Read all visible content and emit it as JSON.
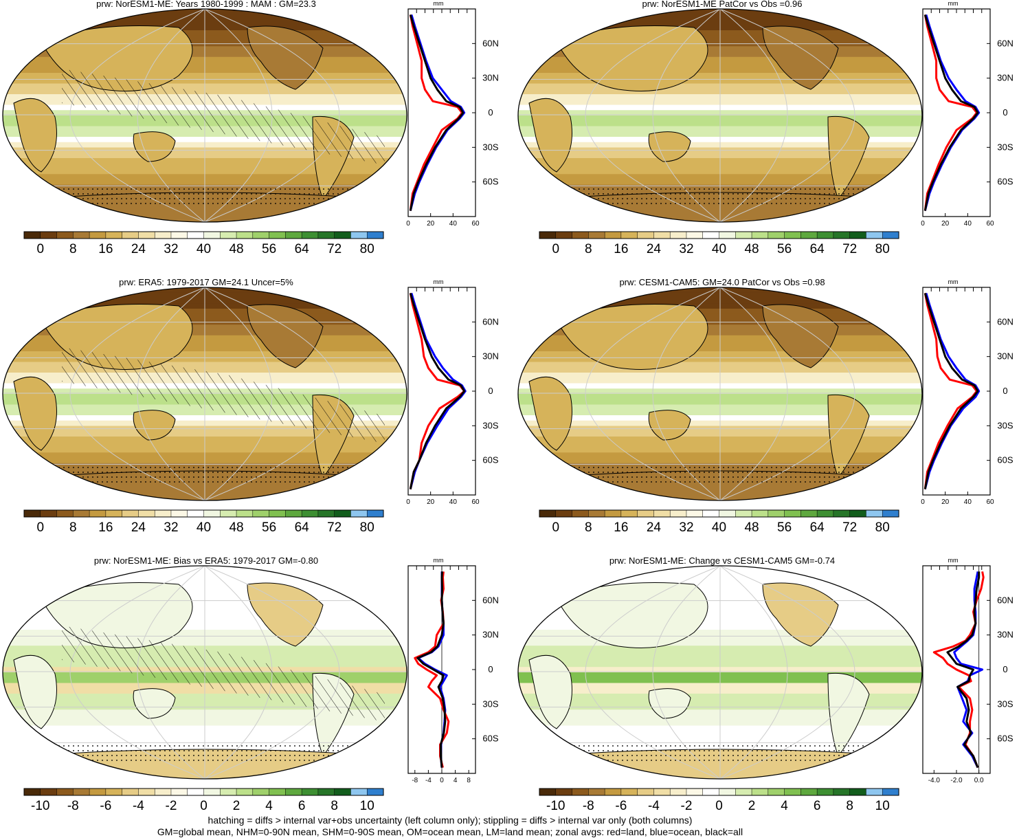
{
  "colors": {
    "abs_scale": [
      "#4a2a09",
      "#6b3d10",
      "#8c5a1d",
      "#a87a35",
      "#c49a40",
      "#d6b35a",
      "#e6cc86",
      "#f0dea6",
      "#f7eecb",
      "#fcf8e6",
      "#ffffff",
      "#f1f7e2",
      "#d6ecb0",
      "#bce08a",
      "#9fd06b",
      "#80c050",
      "#5ea83e",
      "#3d8f32",
      "#267528",
      "#125d1c",
      "#8ec6ef",
      "#2f7fce"
    ],
    "diff_scale": [
      "#4a2a09",
      "#6b3d10",
      "#8c5a1d",
      "#a87a35",
      "#c49a40",
      "#d6b35a",
      "#e6cc86",
      "#f0dea6",
      "#f7eecb",
      "#fcf8e6",
      "#ffffff",
      "#f1f7e2",
      "#d6ecb0",
      "#bce08a",
      "#9fd06b",
      "#80c050",
      "#5ea83e",
      "#3d8f32",
      "#267528",
      "#125d1c",
      "#8ec6ef",
      "#2f7fce"
    ],
    "land": "#ff0000",
    "ocean": "#0000ff",
    "all": "#000000"
  },
  "abs_colorbar_labels": [
    "0",
    "8",
    "16",
    "24",
    "32",
    "40",
    "48",
    "56",
    "64",
    "72",
    "80"
  ],
  "diff_colorbar_labels": [
    "-10",
    "-8",
    "-6",
    "-4",
    "-2",
    "0",
    "2",
    "4",
    "6",
    "8",
    "10"
  ],
  "lat_labels": [
    "60N",
    "30N",
    "0",
    "30S",
    "60S"
  ],
  "zonal_unit": "mm",
  "panels": [
    {
      "title": "prw: NorESM1-ME: Years 1980-1999 : MAM : GM=23.3",
      "type": "abs"
    },
    {
      "title": "prw: NorESM1-ME PatCor vs Obs =0.96",
      "type": "abs"
    },
    {
      "title": "prw: ERA5: 1979-2017 GM=24.1 Uncer=5%",
      "type": "abs"
    },
    {
      "title": "prw: CESM1-CAM5: GM=24.0 PatCor vs Obs =0.98",
      "type": "abs"
    },
    {
      "title": "prw: NorESM1-ME: Bias vs ERA5: 1979-2017 GM=-0.80",
      "type": "diff"
    },
    {
      "title": "prw: NorESM1-ME: Change vs CESM1-CAM5 GM=-0.74",
      "type": "diff"
    }
  ],
  "chart_data": [
    {
      "type": "line",
      "panel": 1,
      "xlabel": "mm",
      "xlim": [
        0,
        60
      ],
      "xticks": [
        "0",
        "20",
        "40",
        "60"
      ],
      "ylim": [
        -90,
        90
      ],
      "y_ticklabels": [
        "60N",
        "30N",
        "0",
        "30S",
        "60S"
      ],
      "lat": [
        -85,
        -70,
        -60,
        -45,
        -30,
        -15,
        -5,
        0,
        5,
        10,
        20,
        30,
        45,
        60,
        75,
        85
      ],
      "series": [
        {
          "name": "land",
          "values": [
            2,
            4,
            8,
            14,
            22,
            30,
            44,
            48,
            44,
            22,
            15,
            12,
            12,
            8,
            4,
            2
          ]
        },
        {
          "name": "ocean",
          "values": [
            2,
            6,
            10,
            17,
            25,
            35,
            46,
            50,
            47,
            38,
            30,
            22,
            16,
            11,
            6,
            3
          ]
        },
        {
          "name": "all",
          "values": [
            2,
            5,
            9,
            16,
            24,
            34,
            45,
            49,
            46,
            34,
            26,
            20,
            15,
            10,
            5,
            2
          ]
        }
      ]
    },
    {
      "type": "line",
      "panel": 2,
      "xlabel": "mm",
      "xlim": [
        0,
        60
      ],
      "xticks": [
        "0",
        "20",
        "40",
        "60"
      ],
      "ylim": [
        -90,
        90
      ],
      "y_ticklabels": [
        "60N",
        "30N",
        "0",
        "30S",
        "60S"
      ],
      "lat": [
        -85,
        -70,
        -60,
        -45,
        -30,
        -15,
        -5,
        0,
        5,
        10,
        20,
        30,
        45,
        60,
        75,
        85
      ],
      "series": [
        {
          "name": "land",
          "values": [
            2,
            4,
            8,
            14,
            21,
            30,
            44,
            48,
            44,
            23,
            15,
            12,
            12,
            8,
            4,
            2
          ]
        },
        {
          "name": "ocean",
          "values": [
            2,
            6,
            10,
            17,
            25,
            35,
            46,
            50,
            47,
            38,
            30,
            23,
            16,
            11,
            6,
            3
          ]
        },
        {
          "name": "all",
          "values": [
            2,
            5,
            9,
            16,
            24,
            34,
            45,
            49,
            46,
            34,
            26,
            20,
            15,
            10,
            5,
            2
          ]
        }
      ]
    },
    {
      "type": "line",
      "panel": 3,
      "xlabel": "mm",
      "xlim": [
        0,
        60
      ],
      "xticks": [
        "0",
        "20",
        "40",
        "60"
      ],
      "ylim": [
        -90,
        90
      ],
      "y_ticklabels": [
        "60N",
        "30N",
        "0",
        "30S",
        "60S"
      ],
      "lat": [
        -85,
        -70,
        -60,
        -45,
        -30,
        -15,
        -5,
        0,
        5,
        10,
        20,
        30,
        45,
        60,
        75,
        85
      ],
      "series": [
        {
          "name": "land",
          "values": [
            2,
            5,
            10,
            12,
            18,
            28,
            44,
            50,
            46,
            26,
            18,
            14,
            12,
            8,
            4,
            2
          ]
        },
        {
          "name": "ocean",
          "values": [
            2,
            6,
            10,
            17,
            26,
            36,
            47,
            51,
            48,
            40,
            31,
            24,
            16,
            11,
            6,
            3
          ]
        },
        {
          "name": "all",
          "values": [
            2,
            5,
            10,
            16,
            24,
            34,
            46,
            50,
            47,
            36,
            27,
            21,
            15,
            10,
            5,
            2
          ]
        }
      ]
    },
    {
      "type": "line",
      "panel": 4,
      "xlabel": "mm",
      "xlim": [
        0,
        60
      ],
      "xticks": [
        "0",
        "20",
        "40",
        "60"
      ],
      "ylim": [
        -90,
        90
      ],
      "y_ticklabels": [
        "60N",
        "30N",
        "0",
        "30S",
        "60S"
      ],
      "lat": [
        -85,
        -70,
        -60,
        -45,
        -30,
        -15,
        -5,
        0,
        5,
        10,
        20,
        30,
        45,
        60,
        75,
        85
      ],
      "series": [
        {
          "name": "land",
          "values": [
            2,
            4,
            8,
            14,
            22,
            31,
            44,
            48,
            44,
            24,
            16,
            13,
            12,
            8,
            4,
            2
          ]
        },
        {
          "name": "ocean",
          "values": [
            2,
            6,
            10,
            17,
            25,
            36,
            47,
            50,
            47,
            38,
            30,
            23,
            16,
            11,
            6,
            3
          ]
        },
        {
          "name": "all",
          "values": [
            2,
            5,
            9,
            16,
            24,
            34,
            45,
            49,
            46,
            35,
            26,
            20,
            15,
            10,
            5,
            2
          ]
        }
      ]
    },
    {
      "type": "line",
      "panel": 5,
      "xlabel": "mm",
      "xlim": [
        -10,
        10
      ],
      "xticks": [
        "-8",
        "-4",
        "0",
        "4",
        "8"
      ],
      "ylim": [
        -90,
        90
      ],
      "y_ticklabels": [
        "60N",
        "30N",
        "0",
        "30S",
        "60S"
      ],
      "lat": [
        -85,
        -75,
        -65,
        -55,
        -45,
        -35,
        -25,
        -15,
        -10,
        -5,
        0,
        5,
        10,
        15,
        20,
        30,
        40,
        50,
        60,
        70,
        80,
        85
      ],
      "series": [
        {
          "name": "land",
          "values": [
            0.3,
            -0.5,
            -0.5,
            1.5,
            2.0,
            0.5,
            -0.5,
            -4.0,
            -3.0,
            -1.5,
            -4.5,
            -7.0,
            -8.0,
            -4.0,
            -2.0,
            -1.5,
            0.5,
            0.3,
            -0.2,
            0.5,
            0.3,
            0.5
          ]
        },
        {
          "name": "ocean",
          "values": [
            0.0,
            -0.3,
            -0.2,
            0.5,
            0.8,
            1.0,
            0.5,
            -0.5,
            0.5,
            1.5,
            -2.0,
            -5.0,
            -7.0,
            -3.0,
            -1.0,
            0.5,
            0.5,
            0.2,
            0.0,
            0.0,
            0.0,
            0.0
          ]
        },
        {
          "name": "all",
          "values": [
            0.0,
            -0.3,
            -0.3,
            0.6,
            1.0,
            0.8,
            0.3,
            -1.0,
            0.0,
            0.5,
            -2.5,
            -5.5,
            -7.2,
            -3.2,
            -1.3,
            0.0,
            0.5,
            0.2,
            0.0,
            0.1,
            0.0,
            0.1
          ]
        }
      ]
    },
    {
      "type": "line",
      "panel": 6,
      "xlabel": "mm",
      "xlim": [
        -5,
        1
      ],
      "xticks": [
        "-4.0",
        "-2.0",
        "0.0"
      ],
      "ylim": [
        -90,
        90
      ],
      "y_ticklabels": [
        "60N",
        "30N",
        "0",
        "30S",
        "60S"
      ],
      "lat": [
        -85,
        -75,
        -65,
        -55,
        -45,
        -35,
        -25,
        -15,
        -10,
        -5,
        0,
        5,
        10,
        15,
        20,
        25,
        30,
        40,
        50,
        60,
        70,
        80,
        85
      ],
      "series": [
        {
          "name": "land",
          "values": [
            -0.1,
            -0.5,
            -1.2,
            -0.8,
            -0.8,
            -0.6,
            -0.8,
            -1.8,
            -0.7,
            -0.9,
            -2.0,
            -2.8,
            -3.2,
            -4.0,
            -2.3,
            -1.2,
            -0.8,
            -0.3,
            -0.5,
            -0.2,
            0.2,
            0.4,
            0.3
          ]
        },
        {
          "name": "ocean",
          "values": [
            -0.1,
            -0.6,
            -1.4,
            -0.6,
            -1.4,
            -1.1,
            -1.5,
            -1.9,
            -1.0,
            -0.8,
            0.3,
            -1.6,
            -2.0,
            -2.2,
            -1.6,
            -1.0,
            -0.5,
            -0.3,
            -0.3,
            -0.4,
            -0.4,
            -0.2,
            -0.1
          ]
        },
        {
          "name": "all",
          "values": [
            -0.1,
            -0.5,
            -1.3,
            -0.7,
            -1.1,
            -0.9,
            -1.1,
            -1.9,
            -0.9,
            -0.8,
            -0.5,
            -2.0,
            -2.4,
            -2.8,
            -1.8,
            -1.1,
            -0.6,
            -0.3,
            -0.4,
            -0.3,
            -0.2,
            0.0,
            0.0
          ]
        }
      ]
    }
  ],
  "footer": {
    "line1": "hatching = diffs > internal var+obs uncertainty (left column only); stippling = diffs > internal var only (both columns)",
    "line2": "GM=global mean, NHM=0-90N mean, SHM=0-90S mean, OM=ocean mean, LM=land mean; zonal avgs: red=land, blue=ocean, black=all"
  }
}
